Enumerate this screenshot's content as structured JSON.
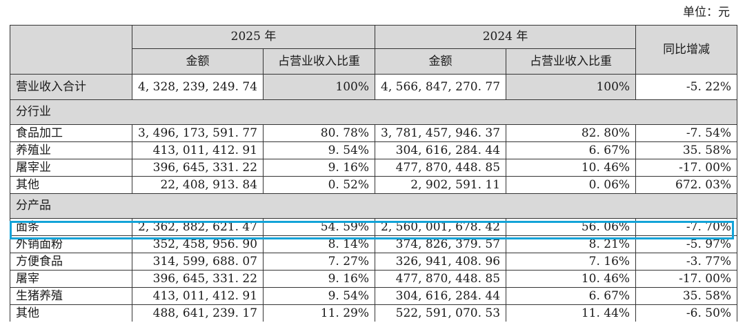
{
  "unit_label": "单位：元",
  "headers": {
    "year_2025": "2025 年",
    "year_2024": "2024 年",
    "yoy": "同比增减",
    "amount": "金额",
    "ratio": "占营业收入比重"
  },
  "total": {
    "label": "营业收入合计",
    "amount_2025": "4, 328, 239, 249. 74",
    "ratio_2025": "100%",
    "amount_2024": "4, 566, 847, 270. 77",
    "ratio_2024": "100%",
    "yoy": "-5. 22%"
  },
  "sections": [
    {
      "title": "分行业",
      "rows": [
        {
          "label": "食品加工",
          "amount_2025": "3, 496, 173, 591. 77",
          "ratio_2025": "80. 78%",
          "amount_2024": "3, 781, 457, 946. 37",
          "ratio_2024": "82. 80%",
          "yoy": "-7. 54%"
        },
        {
          "label": "养殖业",
          "amount_2025": "413, 011, 412. 91",
          "ratio_2025": "9. 54%",
          "amount_2024": "304, 616, 284. 44",
          "ratio_2024": "6. 67%",
          "yoy": "35. 58%"
        },
        {
          "label": "屠宰业",
          "amount_2025": "396, 645, 331. 22",
          "ratio_2025": "9. 16%",
          "amount_2024": "477, 870, 448. 85",
          "ratio_2024": "10. 46%",
          "yoy": "-17. 00%"
        },
        {
          "label": "其他",
          "amount_2025": "22, 408, 913. 84",
          "ratio_2025": "0. 52%",
          "amount_2024": "2, 902, 591. 11",
          "ratio_2024": "0. 06%",
          "yoy": "672. 03%"
        }
      ]
    },
    {
      "title": "分产品",
      "rows": [
        {
          "label": "面条",
          "amount_2025": "2, 362, 882, 621. 47",
          "ratio_2025": "54. 59%",
          "amount_2024": "2, 560, 001, 678. 42",
          "ratio_2024": "56. 06%",
          "yoy": "-7. 70%"
        },
        {
          "label": "外销面粉",
          "amount_2025": "352, 458, 956. 90",
          "ratio_2025": "8. 14%",
          "amount_2024": "374, 826, 379. 57",
          "ratio_2024": "8. 21%",
          "yoy": "-5. 97%"
        },
        {
          "label": "方便食品",
          "amount_2025": "314, 599, 688. 07",
          "ratio_2025": "7. 27%",
          "amount_2024": "326, 941, 408. 96",
          "ratio_2024": "7. 16%",
          "yoy": "-3. 77%"
        },
        {
          "label": "屠宰",
          "amount_2025": "396, 645, 331. 22",
          "ratio_2025": "9. 16%",
          "amount_2024": "477, 870, 448. 85",
          "ratio_2024": "10. 46%",
          "yoy": "-17. 00%"
        },
        {
          "label": "生猪养殖",
          "amount_2025": "413, 011, 412. 91",
          "ratio_2025": "9. 54%",
          "amount_2024": "304, 616, 284. 44",
          "ratio_2024": "6. 67%",
          "yoy": "35. 58%"
        },
        {
          "label": "其他",
          "amount_2025": "488, 641, 239. 17",
          "ratio_2025": "11. 29%",
          "amount_2024": "522, 591, 070. 53",
          "ratio_2024": "11. 44%",
          "yoy": "-6. 50%"
        }
      ]
    }
  ],
  "highlight": {
    "section": 1,
    "row": 0,
    "color": "#12a3d8"
  }
}
